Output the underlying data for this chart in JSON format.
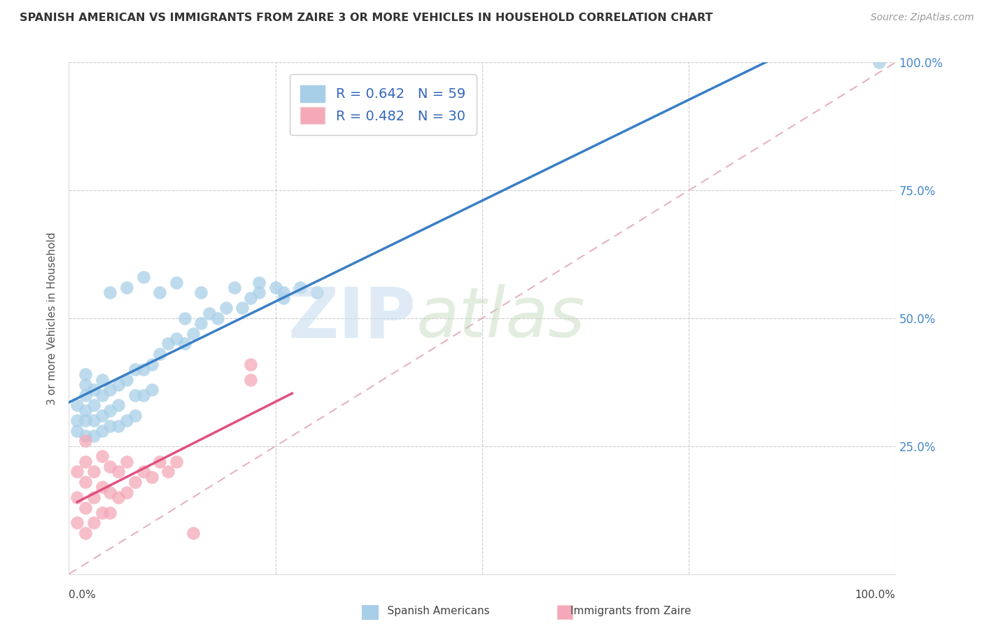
{
  "title": "SPANISH AMERICAN VS IMMIGRANTS FROM ZAIRE 3 OR MORE VEHICLES IN HOUSEHOLD CORRELATION CHART",
  "source": "Source: ZipAtlas.com",
  "ylabel": "3 or more Vehicles in Household",
  "xlim": [
    0.0,
    1.0
  ],
  "ylim": [
    0.0,
    1.0
  ],
  "legend_label1": "Spanish Americans",
  "legend_label2": "Immigrants from Zaire",
  "R1": 0.642,
  "N1": 59,
  "R2": 0.482,
  "N2": 30,
  "color_blue": "#a8cfe8",
  "color_pink": "#f4a8b8",
  "color_blue_line": "#3a7ec6",
  "color_pink_line": "#e05080",
  "color_dashed": "#e0a0b0",
  "blue_x": [
    0.01,
    0.01,
    0.01,
    0.02,
    0.02,
    0.02,
    0.02,
    0.02,
    0.02,
    0.03,
    0.03,
    0.03,
    0.03,
    0.04,
    0.04,
    0.04,
    0.04,
    0.05,
    0.05,
    0.05,
    0.06,
    0.06,
    0.06,
    0.07,
    0.07,
    0.08,
    0.08,
    0.08,
    0.09,
    0.09,
    0.1,
    0.1,
    0.11,
    0.12,
    0.13,
    0.14,
    0.14,
    0.15,
    0.16,
    0.17,
    0.18,
    0.19,
    0.21,
    0.22,
    0.23,
    0.25,
    0.26,
    0.28,
    0.3,
    0.05,
    0.07,
    0.09,
    0.11,
    0.13,
    0.16,
    0.2,
    0.23,
    0.26,
    0.98
  ],
  "blue_y": [
    0.28,
    0.3,
    0.33,
    0.27,
    0.3,
    0.32,
    0.35,
    0.37,
    0.39,
    0.27,
    0.3,
    0.33,
    0.36,
    0.28,
    0.31,
    0.35,
    0.38,
    0.29,
    0.32,
    0.36,
    0.29,
    0.33,
    0.37,
    0.3,
    0.38,
    0.31,
    0.35,
    0.4,
    0.35,
    0.4,
    0.36,
    0.41,
    0.43,
    0.45,
    0.46,
    0.45,
    0.5,
    0.47,
    0.49,
    0.51,
    0.5,
    0.52,
    0.52,
    0.54,
    0.55,
    0.56,
    0.54,
    0.56,
    0.55,
    0.55,
    0.56,
    0.58,
    0.55,
    0.57,
    0.55,
    0.56,
    0.57,
    0.55,
    1.0
  ],
  "pink_x": [
    0.01,
    0.01,
    0.01,
    0.02,
    0.02,
    0.02,
    0.02,
    0.02,
    0.03,
    0.03,
    0.03,
    0.04,
    0.04,
    0.04,
    0.05,
    0.05,
    0.05,
    0.06,
    0.06,
    0.07,
    0.07,
    0.08,
    0.09,
    0.1,
    0.11,
    0.12,
    0.13,
    0.15,
    0.22,
    0.22
  ],
  "pink_y": [
    0.1,
    0.15,
    0.2,
    0.08,
    0.13,
    0.18,
    0.22,
    0.26,
    0.1,
    0.15,
    0.2,
    0.12,
    0.17,
    0.23,
    0.12,
    0.16,
    0.21,
    0.15,
    0.2,
    0.16,
    0.22,
    0.18,
    0.2,
    0.19,
    0.22,
    0.2,
    0.22,
    0.08,
    0.38,
    0.41
  ]
}
